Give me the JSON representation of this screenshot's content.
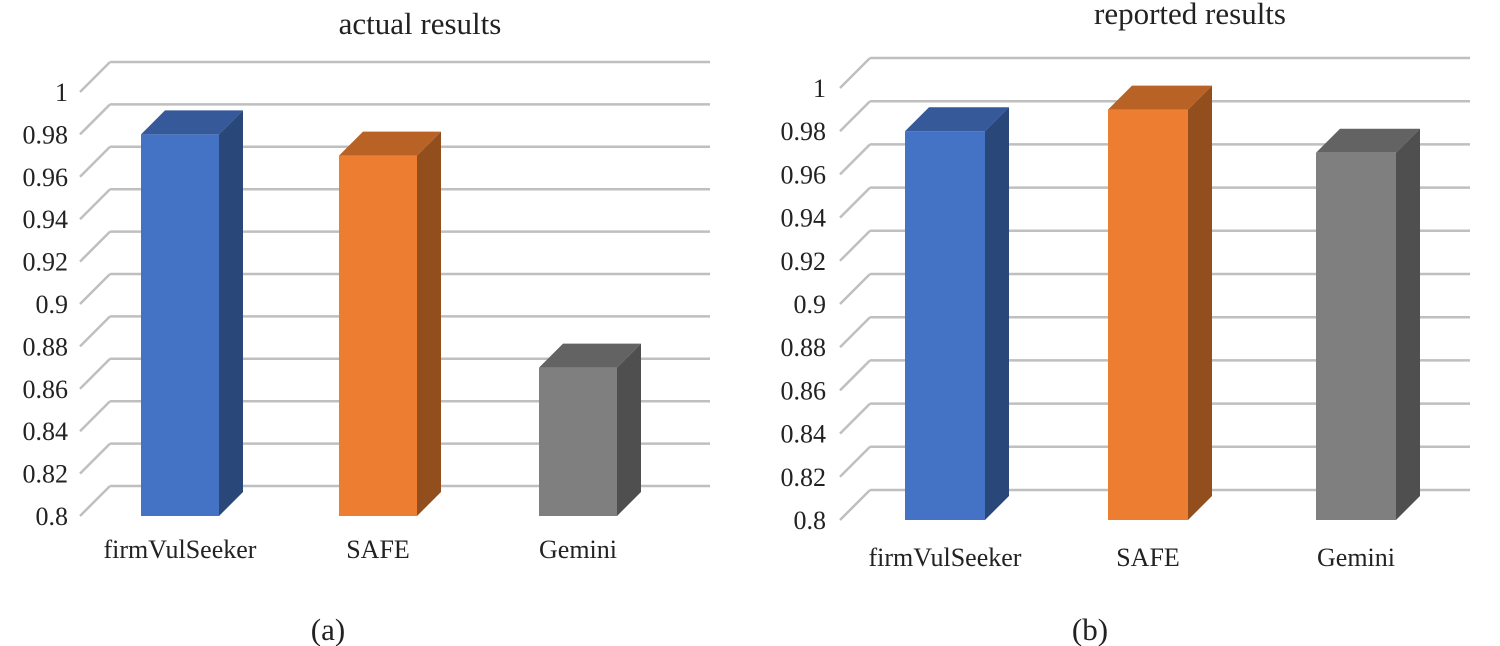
{
  "colors": {
    "firmVulSeeker": "#4472c4",
    "SAFE": "#ed7d31",
    "Gemini": "#7f7f7f",
    "gridline": "#bfbfbf"
  },
  "chart_data": [
    {
      "type": "bar",
      "title": "actual results",
      "panel_label": "(a)",
      "categories": [
        "firmVulSeeker",
        "SAFE",
        "Gemini"
      ],
      "values": [
        0.98,
        0.97,
        0.87
      ],
      "ylim": [
        0.8,
        1
      ],
      "yticks": [
        "0.8",
        "0.82",
        "0.84",
        "0.86",
        "0.88",
        "0.9",
        "0.92",
        "0.94",
        "0.96",
        "0.98",
        "1"
      ],
      "grid": true,
      "legend": "none"
    },
    {
      "type": "bar",
      "title": "reported results",
      "panel_label": "(b)",
      "categories": [
        "firmVulSeeker",
        "SAFE",
        "Gemini"
      ],
      "values": [
        0.98,
        0.99,
        0.97
      ],
      "ylim": [
        0.8,
        1
      ],
      "yticks": [
        "0.8",
        "0.82",
        "0.84",
        "0.86",
        "0.88",
        "0.9",
        "0.92",
        "0.94",
        "0.96",
        "0.98",
        "1"
      ],
      "grid": true,
      "legend": "none"
    }
  ]
}
